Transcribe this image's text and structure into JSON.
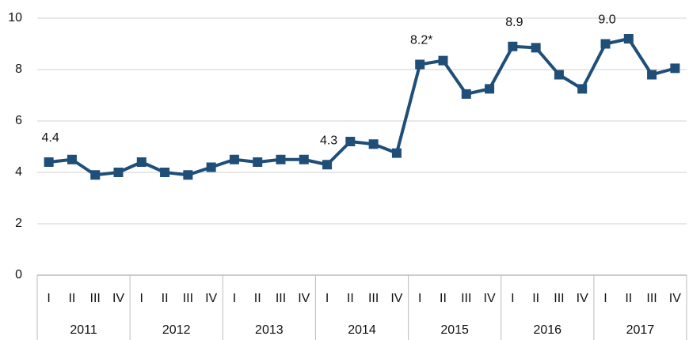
{
  "chart_data": {
    "type": "line",
    "categories": [
      "I",
      "II",
      "III",
      "IV",
      "I",
      "II",
      "III",
      "IV",
      "I",
      "II",
      "III",
      "IV",
      "I",
      "II",
      "III",
      "IV",
      "I",
      "II",
      "III",
      "IV",
      "I",
      "II",
      "III",
      "IV",
      "I",
      "II",
      "III",
      "IV"
    ],
    "year_groups": [
      "2011",
      "2012",
      "2013",
      "2014",
      "2015",
      "2016",
      "2017"
    ],
    "series": [
      {
        "color": "#1f4e79",
        "values": [
          4.4,
          4.5,
          3.9,
          4.0,
          4.4,
          4.0,
          3.9,
          4.2,
          4.5,
          4.4,
          4.5,
          4.5,
          4.3,
          5.2,
          5.1,
          4.75,
          8.2,
          8.35,
          7.05,
          7.25,
          8.9,
          8.85,
          7.8,
          7.25,
          9.0,
          9.2,
          7.8,
          8.05
        ],
        "value_labels": [
          "4.4",
          null,
          null,
          null,
          null,
          null,
          null,
          null,
          null,
          null,
          null,
          null,
          "4.3",
          null,
          null,
          null,
          "8.2*",
          null,
          null,
          null,
          "8.9",
          null,
          null,
          null,
          "9.0",
          null,
          null,
          null
        ]
      }
    ],
    "ylim": [
      0,
      10
    ],
    "yticks": [
      0,
      2,
      4,
      6,
      8,
      10
    ],
    "grid": true
  }
}
